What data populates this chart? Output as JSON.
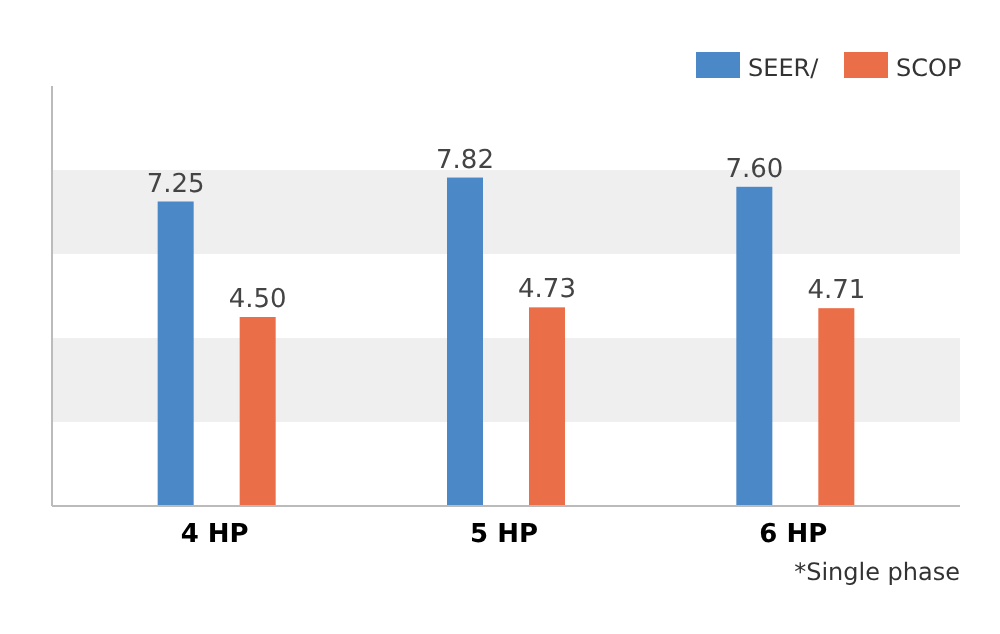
{
  "chart_data": {
    "type": "bar",
    "categories": [
      "4 HP",
      "5 HP",
      "6 HP"
    ],
    "series": [
      {
        "name": "SEER/",
        "color": "#4a88c7",
        "values": [
          7.25,
          7.82,
          7.6
        ],
        "value_labels": [
          "7.25",
          "7.82",
          "7.60"
        ]
      },
      {
        "name": "SCOP",
        "color": "#ea6e47",
        "values": [
          4.5,
          4.73,
          4.71
        ],
        "value_labels": [
          "4.50",
          "4.73",
          "4.71"
        ]
      }
    ],
    "ylim": [
      0,
      10
    ],
    "bands": [
      {
        "axis": "y",
        "from": 2,
        "to": 4,
        "color": "#efefef"
      },
      {
        "axis": "y",
        "from": 6,
        "to": 8,
        "color": "#efefef"
      }
    ],
    "tick_labels": "x",
    "legend": "top right",
    "annotations": [
      "*Single phase"
    ]
  }
}
